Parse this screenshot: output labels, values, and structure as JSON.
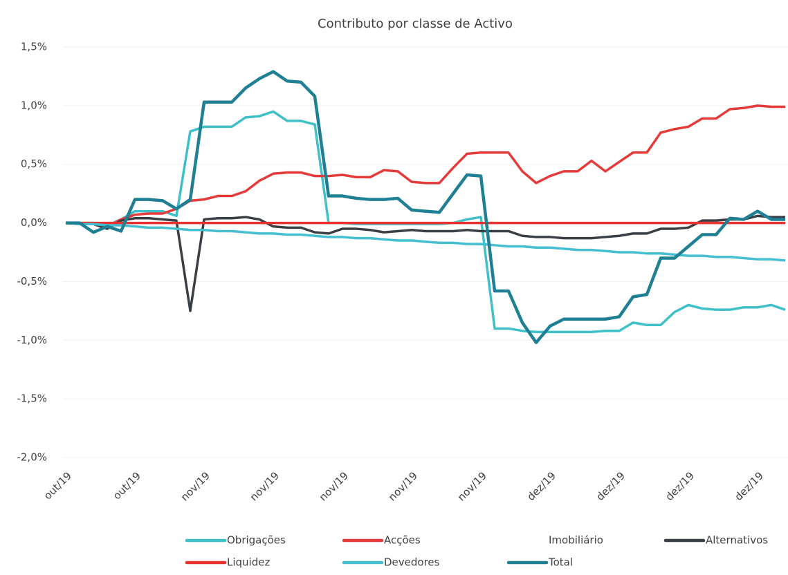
{
  "chart_data": {
    "type": "line",
    "title": "Contributo por classe de Activo",
    "categories": [
      "out/19",
      null,
      null,
      null,
      null,
      "out/19",
      null,
      null,
      null,
      null,
      "nov/19",
      null,
      null,
      null,
      null,
      "nov/19",
      null,
      null,
      null,
      null,
      "nov/19",
      null,
      null,
      null,
      null,
      "nov/19",
      null,
      null,
      null,
      null,
      "nov/19",
      null,
      null,
      null,
      null,
      "dez/19",
      null,
      null,
      null,
      null,
      "dez/19",
      null,
      null,
      null,
      null,
      "dez/19",
      null,
      null,
      null,
      null,
      "dez/19",
      null,
      null
    ],
    "ylim": [
      -2.0,
      1.5
    ],
    "yticks": [
      {
        "value": -2.0,
        "label": "-2,0%"
      },
      {
        "value": -1.5,
        "label": "-1,5%"
      },
      {
        "value": -1.0,
        "label": "-1,0%"
      },
      {
        "value": -0.5,
        "label": "-0,5%"
      },
      {
        "value": 0,
        "label": "0,0%"
      },
      {
        "value": 0.5,
        "label": "0,5%"
      },
      {
        "value": 1.0,
        "label": "1,0%"
      },
      {
        "value": 1.5,
        "label": "1,5%"
      }
    ],
    "grid": true,
    "series": [
      {
        "name": "Obrigações",
        "color": "#3fbfc7",
        "values": [
          0,
          0,
          0,
          -0.02,
          0.03,
          0.1,
          0.1,
          0.1,
          0.06,
          0.78,
          0.82,
          0.82,
          0.82,
          0.9,
          0.91,
          0.95,
          0.87,
          0.87,
          0.84,
          0,
          0,
          -0.01,
          -0.01,
          -0.01,
          -0.01,
          -0.01,
          -0.01,
          -0.01,
          0,
          0.03,
          0.05,
          -0.9,
          -0.9,
          -0.92,
          -0.93,
          -0.93,
          -0.93,
          -0.93,
          -0.93,
          -0.92,
          -0.92,
          -0.85,
          -0.87,
          -0.87,
          -0.76,
          -0.7,
          -0.73,
          -0.74,
          -0.74,
          -0.72,
          -0.72,
          -0.7,
          -0.74
        ]
      },
      {
        "name": "Acções",
        "color": "#e53a3a",
        "values": [
          0,
          0,
          0,
          -0.03,
          0.03,
          0.07,
          0.08,
          0.08,
          0.12,
          0.19,
          0.2,
          0.23,
          0.23,
          0.27,
          0.36,
          0.42,
          0.43,
          0.43,
          0.4,
          0.4,
          0.41,
          0.39,
          0.39,
          0.45,
          0.44,
          0.35,
          0.34,
          0.34,
          0.47,
          0.59,
          0.6,
          0.6,
          0.6,
          0.44,
          0.34,
          0.4,
          0.44,
          0.44,
          0.53,
          0.44,
          0.52,
          0.6,
          0.6,
          0.77,
          0.8,
          0.82,
          0.89,
          0.89,
          0.97,
          0.98,
          1.0,
          0.99,
          0.99
        ]
      },
      {
        "name": "Imobiliário",
        "color": "#ffffff",
        "values": [
          0,
          0,
          0,
          0,
          0,
          0,
          0,
          0,
          0,
          0,
          0,
          0,
          0,
          0,
          0,
          0,
          0,
          0,
          0,
          0,
          0,
          0,
          0,
          0,
          0,
          0,
          0,
          0,
          0,
          0,
          0,
          0,
          0,
          0,
          0,
          0,
          0,
          0,
          0,
          0,
          0,
          0,
          0,
          0,
          0,
          0,
          0,
          0,
          0,
          0,
          0,
          0,
          0
        ]
      },
      {
        "name": "Alternativos",
        "color": "#3a3f45",
        "values": [
          0,
          0,
          -0.01,
          -0.05,
          0.02,
          0.04,
          0.04,
          0.03,
          0.02,
          -0.75,
          0.03,
          0.04,
          0.04,
          0.05,
          0.03,
          -0.03,
          -0.04,
          -0.04,
          -0.08,
          -0.09,
          -0.05,
          -0.05,
          -0.06,
          -0.08,
          -0.07,
          -0.06,
          -0.07,
          -0.07,
          -0.07,
          -0.06,
          -0.07,
          -0.07,
          -0.07,
          -0.11,
          -0.12,
          -0.12,
          -0.13,
          -0.13,
          -0.13,
          -0.12,
          -0.11,
          -0.09,
          -0.09,
          -0.05,
          -0.05,
          -0.04,
          0.02,
          0.02,
          0.03,
          0.03,
          0.06,
          0.05,
          0.05
        ]
      },
      {
        "name": "Liquidez",
        "color": "#e8322f",
        "values": [
          0,
          0,
          0,
          0,
          0,
          0,
          0,
          0,
          0,
          0,
          0,
          0,
          0,
          0,
          0,
          0,
          0,
          0,
          0,
          0,
          0,
          0,
          0,
          0,
          0,
          0,
          0,
          0,
          0,
          0,
          0,
          0,
          0,
          0,
          0,
          0,
          0,
          0,
          0,
          0,
          0,
          0,
          0,
          0,
          0,
          0,
          0,
          0,
          0,
          0,
          0,
          0,
          0
        ]
      },
      {
        "name": "Devedores",
        "color": "#45bfd0",
        "values": [
          0,
          -0.01,
          -0.01,
          -0.02,
          -0.02,
          -0.03,
          -0.04,
          -0.04,
          -0.05,
          -0.06,
          -0.06,
          -0.07,
          -0.07,
          -0.08,
          -0.09,
          -0.09,
          -0.1,
          -0.1,
          -0.11,
          -0.12,
          -0.12,
          -0.13,
          -0.13,
          -0.14,
          -0.15,
          -0.15,
          -0.16,
          -0.17,
          -0.17,
          -0.18,
          -0.18,
          -0.19,
          -0.2,
          -0.2,
          -0.21,
          -0.21,
          -0.22,
          -0.23,
          -0.23,
          -0.24,
          -0.25,
          -0.25,
          -0.26,
          -0.26,
          -0.27,
          -0.28,
          -0.28,
          -0.29,
          -0.29,
          -0.3,
          -0.31,
          -0.31,
          -0.32
        ]
      },
      {
        "name": "Total",
        "color": "#1f7f93",
        "values": [
          0,
          0,
          -0.08,
          -0.03,
          -0.07,
          0.2,
          0.2,
          0.19,
          0.12,
          0.2,
          1.03,
          1.03,
          1.03,
          1.15,
          1.23,
          1.29,
          1.21,
          1.2,
          1.08,
          0.23,
          0.23,
          0.21,
          0.2,
          0.2,
          0.21,
          0.11,
          0.1,
          0.09,
          0.25,
          0.41,
          0.4,
          -0.58,
          -0.58,
          -0.85,
          -1.02,
          -0.88,
          -0.82,
          -0.82,
          -0.82,
          -0.82,
          -0.8,
          -0.63,
          -0.61,
          -0.3,
          -0.3,
          -0.2,
          -0.1,
          -0.1,
          0.04,
          0.03,
          0.1,
          0.03,
          0.03
        ]
      }
    ]
  }
}
